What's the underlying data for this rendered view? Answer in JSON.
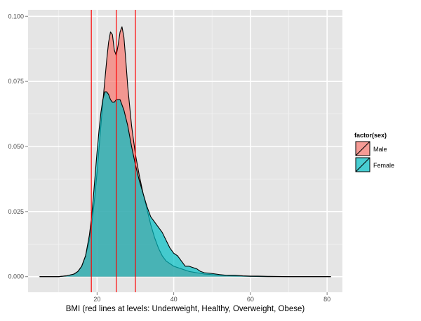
{
  "chart_data": {
    "type": "area",
    "xlabel": "BMI (red lines at levels: Underweight, Healthy, Overweight, Obese)",
    "ylabel": "",
    "xlim": [
      2,
      84
    ],
    "ylim": [
      -0.006,
      0.1025
    ],
    "x_ticks": [
      20,
      40,
      60,
      80
    ],
    "x_tick_labels": [
      "20",
      "40",
      "60",
      "80"
    ],
    "y_ticks": [
      0,
      0.025,
      0.05,
      0.075,
      0.1
    ],
    "y_tick_labels": [
      "0.000",
      "0.025",
      "0.050",
      "0.075",
      "0.100"
    ],
    "grid": true,
    "legend": {
      "title": "factor(sex)",
      "position": "right"
    },
    "vlines": [
      {
        "x": 18.5,
        "color": "#FF0000"
      },
      {
        "x": 25,
        "color": "#FF0000"
      },
      {
        "x": 30,
        "color": "#FF0000"
      }
    ],
    "series": [
      {
        "name": "Male",
        "color": "#F8766D",
        "alpha": 0.7,
        "x": [
          5,
          10,
          12,
          14,
          15,
          16,
          17,
          18,
          18.5,
          19,
          19.5,
          20,
          20.5,
          21,
          21.5,
          22,
          22.5,
          23,
          23.5,
          24,
          24.5,
          25,
          25.5,
          26,
          26.5,
          27,
          27.5,
          28,
          29,
          30,
          31,
          32,
          33,
          34,
          35,
          36,
          37,
          38,
          40,
          42,
          44,
          46,
          48,
          50,
          52,
          55,
          60,
          65,
          70,
          75,
          81
        ],
        "y": [
          0,
          0,
          0.0003,
          0.001,
          0.002,
          0.004,
          0.008,
          0.014,
          0.019,
          0.025,
          0.032,
          0.04,
          0.049,
          0.058,
          0.067,
          0.075,
          0.083,
          0.09,
          0.094,
          0.093,
          0.087,
          0.085,
          0.089,
          0.094,
          0.096,
          0.092,
          0.083,
          0.073,
          0.058,
          0.047,
          0.039,
          0.032,
          0.026,
          0.02,
          0.015,
          0.011,
          0.008,
          0.006,
          0.004,
          0.003,
          0.002,
          0.0015,
          0.001,
          0.0008,
          0.0005,
          0.0003,
          0.0001,
          0,
          0,
          0,
          0
        ]
      },
      {
        "name": "Female",
        "color": "#00BFC4",
        "alpha": 0.7,
        "x": [
          5,
          10,
          12,
          14,
          15,
          16,
          17,
          18,
          18.5,
          19,
          19.5,
          20,
          20.5,
          21,
          21.5,
          22,
          22.5,
          23,
          23.5,
          24,
          24.5,
          25,
          26,
          27,
          28,
          29,
          30,
          31,
          32,
          33,
          34,
          35,
          36,
          37,
          38,
          39,
          40,
          41,
          42,
          43,
          44,
          45,
          46,
          47,
          48,
          50,
          52,
          54,
          56,
          58,
          60,
          62,
          65,
          70,
          75,
          81
        ],
        "y": [
          0,
          0,
          0.0003,
          0.001,
          0.002,
          0.004,
          0.008,
          0.016,
          0.022,
          0.03,
          0.039,
          0.048,
          0.056,
          0.063,
          0.068,
          0.071,
          0.071,
          0.07,
          0.068,
          0.067,
          0.067,
          0.068,
          0.068,
          0.064,
          0.058,
          0.05,
          0.043,
          0.037,
          0.032,
          0.027,
          0.023,
          0.021,
          0.019,
          0.017,
          0.014,
          0.011,
          0.009,
          0.008,
          0.006,
          0.004,
          0.004,
          0.0035,
          0.003,
          0.002,
          0.0015,
          0.0012,
          0.0008,
          0.0005,
          0.0005,
          0.0003,
          0.0002,
          0.0002,
          0.0001,
          0,
          0,
          0
        ]
      }
    ]
  }
}
